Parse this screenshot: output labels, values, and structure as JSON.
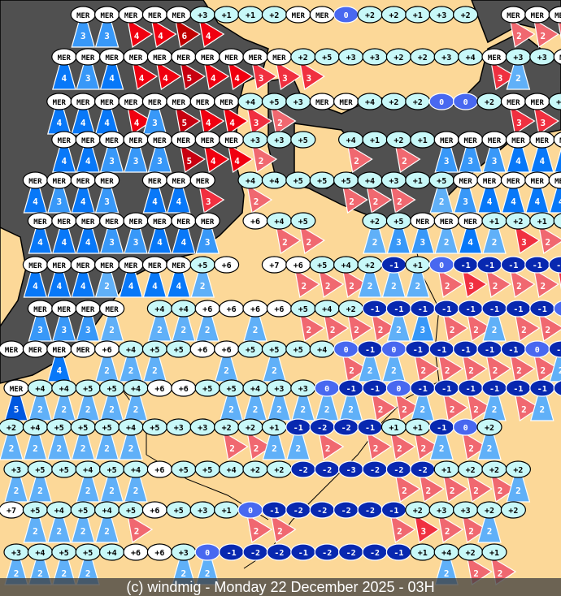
{
  "caption": "(c) windmig - Monday 22 December 2025 - 03H",
  "colors": {
    "land": "#fcd898",
    "sea": "#505050",
    "label_sea": "#ffffff",
    "label_warm": "#c8f8f8",
    "label_zero": "#4868f0",
    "label_cold": "#0828b0",
    "wind_blue": {
      "2": "#60b0f8",
      "3": "#3898f8",
      "4": "#0878f8",
      "5": "#0058e0"
    },
    "wind_red": {
      "2": "#f06870",
      "3": "#f03040",
      "4": "#f00010",
      "5": "#c80010",
      "6": "#c00000"
    }
  },
  "legend_note": "label = temperature or MER (sea); triangle number = wind force; b = blue marker, r = red marker",
  "stations": [
    [
      null,
      null,
      null,
      [
        "MER",
        "3b"
      ],
      [
        "MER",
        "3b"
      ],
      [
        "MER",
        "4r"
      ],
      [
        "MER",
        "4r"
      ],
      [
        "MER",
        "6r"
      ],
      [
        "+3",
        "4r"
      ],
      [
        "+1",
        null
      ],
      [
        "+1",
        null
      ],
      [
        "+2",
        null
      ],
      [
        "MER",
        null
      ],
      [
        "MER",
        null
      ],
      [
        "0",
        null
      ],
      [
        "+2",
        null
      ],
      [
        "+2",
        null
      ],
      [
        "+1",
        null
      ],
      [
        "+3",
        null
      ],
      [
        "+2",
        null
      ],
      null,
      [
        "MER",
        "2r"
      ],
      [
        "MER",
        "2r"
      ],
      [
        "MER",
        "2r"
      ]
    ],
    [
      null,
      null,
      [
        "MER",
        "4b"
      ],
      [
        "MER",
        "3b"
      ],
      [
        "MER",
        "4b"
      ],
      [
        "MER",
        "4r"
      ],
      [
        "MER",
        "4r"
      ],
      [
        "MER",
        "5r"
      ],
      [
        "MER",
        "4r"
      ],
      [
        "MER",
        "4r"
      ],
      [
        "MER",
        "3r"
      ],
      [
        "MER",
        "3r"
      ],
      [
        "+2",
        "3r"
      ],
      [
        "+5",
        null
      ],
      [
        "+3",
        null
      ],
      [
        "+3",
        null
      ],
      [
        "+2",
        null
      ],
      [
        "+2",
        null
      ],
      [
        "+3",
        null
      ],
      [
        "+4",
        null
      ],
      [
        "MER",
        "3r"
      ],
      [
        "+3",
        "2b"
      ],
      [
        "+3",
        null
      ],
      [
        "MER",
        "3r"
      ]
    ],
    [
      null,
      null,
      [
        "MER",
        "4b"
      ],
      [
        "MER",
        "4b"
      ],
      [
        "MER",
        "4b"
      ],
      [
        "MER",
        "4r"
      ],
      [
        "MER",
        "3b"
      ],
      [
        "MER",
        "5r"
      ],
      [
        "MER",
        "4r"
      ],
      [
        "MER",
        "4r"
      ],
      [
        "+4",
        "3r"
      ],
      [
        "+5",
        "2r"
      ],
      [
        "+3",
        null
      ],
      [
        "MER",
        null
      ],
      [
        "MER",
        null
      ],
      [
        "+4",
        null
      ],
      [
        "+2",
        null
      ],
      [
        "+2",
        null
      ],
      [
        "0",
        null
      ],
      [
        "0",
        null
      ],
      [
        "+2",
        null
      ],
      [
        "MER",
        "3r"
      ],
      [
        "MER",
        "3r"
      ],
      [
        "+2",
        null
      ]
    ],
    [
      null,
      null,
      [
        "MER",
        "4b"
      ],
      [
        "MER",
        "4b"
      ],
      [
        "MER",
        "3b"
      ],
      [
        "MER",
        "3b"
      ],
      [
        "MER",
        "3b"
      ],
      [
        "MER",
        "5r"
      ],
      [
        "MER",
        "4r"
      ],
      [
        "MER",
        "4r"
      ],
      [
        "+3",
        "2r"
      ],
      [
        "+3",
        null
      ],
      [
        "+5",
        null
      ],
      null,
      [
        "+4",
        "2r"
      ],
      [
        "+1",
        null
      ],
      [
        "+2",
        "2r"
      ],
      [
        "+1",
        null
      ],
      [
        "MER",
        "3b"
      ],
      [
        "MER",
        "3b"
      ],
      [
        "MER",
        "3b"
      ],
      [
        "MER",
        "4b"
      ],
      [
        "MER",
        "4b"
      ],
      [
        "MER",
        "4b"
      ]
    ],
    [
      null,
      [
        "MER",
        "4b"
      ],
      [
        "MER",
        "3b"
      ],
      [
        "MER",
        "4b"
      ],
      [
        "MER",
        "3b"
      ],
      null,
      [
        "MER",
        "4b"
      ],
      [
        "MER",
        "4b"
      ],
      [
        "MER",
        "3r"
      ],
      null,
      [
        "+4",
        "2r"
      ],
      [
        "+4",
        null
      ],
      [
        "+5",
        null
      ],
      [
        "+5",
        null
      ],
      [
        "+5",
        "2r"
      ],
      [
        "+4",
        "2r"
      ],
      [
        "+3",
        "2r"
      ],
      [
        "+1",
        null
      ],
      [
        "+5",
        "2b"
      ],
      [
        "MER",
        "3b"
      ],
      [
        "MER",
        "4b"
      ],
      [
        "MER",
        "4b"
      ],
      [
        "MER",
        "4b"
      ],
      [
        "MER",
        "4b"
      ]
    ],
    [
      null,
      [
        "MER",
        "4b"
      ],
      [
        "MER",
        "4b"
      ],
      [
        "MER",
        "4b"
      ],
      [
        "MER",
        "3b"
      ],
      [
        "MER",
        "3b"
      ],
      [
        "MER",
        "4b"
      ],
      [
        "MER",
        "4b"
      ],
      [
        "MER",
        "3b"
      ],
      null,
      [
        "+6",
        null
      ],
      [
        "+4",
        "2r"
      ],
      [
        "+5",
        "2r"
      ],
      null,
      null,
      [
        "+2",
        "2b"
      ],
      [
        "+5",
        "3b"
      ],
      [
        "MER",
        "3b"
      ],
      [
        "MER",
        "2b"
      ],
      [
        "MER",
        "4b"
      ],
      [
        "+1",
        "2b"
      ],
      [
        "+2",
        "3r"
      ],
      [
        "+1",
        "2r"
      ],
      [
        "+1",
        "2r"
      ]
    ],
    [
      null,
      [
        "MER",
        "4b"
      ],
      [
        "MER",
        "4b"
      ],
      [
        "MER",
        "4b"
      ],
      [
        "MER",
        "2b"
      ],
      [
        "MER",
        "4b"
      ],
      [
        "MER",
        "4b"
      ],
      [
        "MER",
        "4b"
      ],
      [
        "+5",
        "2b"
      ],
      [
        "+6",
        null
      ],
      null,
      [
        "+7",
        null
      ],
      [
        "+6",
        "2r"
      ],
      [
        "+5",
        "2r"
      ],
      [
        "+4",
        "2r"
      ],
      [
        "+2",
        "2b"
      ],
      [
        "-1",
        "2b"
      ],
      [
        "+1",
        "2b"
      ],
      [
        "0",
        "2r"
      ],
      [
        "-1",
        "3r"
      ],
      [
        "-1",
        "2r"
      ],
      [
        "-1",
        "2r"
      ],
      [
        "-1",
        "2r"
      ],
      [
        "-1",
        "3r"
      ]
    ],
    [
      null,
      [
        "MER",
        "3b"
      ],
      [
        "MER",
        "3b"
      ],
      [
        "MER",
        "3b"
      ],
      [
        "MER",
        "2b"
      ],
      null,
      [
        "+4",
        "2b"
      ],
      [
        "+4",
        "2b"
      ],
      [
        "+6",
        "2b"
      ],
      [
        "+6",
        null
      ],
      [
        "+6",
        "2b"
      ],
      [
        "+6",
        null
      ],
      [
        "+5",
        "2r"
      ],
      [
        "+4",
        "2r"
      ],
      [
        "+2",
        "2r"
      ],
      [
        "-1",
        "2r"
      ],
      [
        "-1",
        "2b"
      ],
      [
        "-1",
        "3b"
      ],
      [
        "-1",
        "2r"
      ],
      [
        "-1",
        "2r"
      ],
      [
        "-1",
        "2b"
      ],
      [
        "-1",
        "2r"
      ],
      [
        "-1",
        "2r"
      ],
      [
        "0",
        "2r"
      ]
    ],
    [
      [
        "MER",
        null
      ],
      [
        "MER",
        null
      ],
      [
        "MER",
        "4b"
      ],
      [
        "MER",
        null
      ],
      [
        "+6",
        "2b"
      ],
      [
        "+4",
        "2b"
      ],
      [
        "+5",
        "2b"
      ],
      [
        "+5",
        null
      ],
      [
        "+6",
        null
      ],
      [
        "+6",
        "2b"
      ],
      [
        "+5",
        null
      ],
      [
        "+5",
        "2b"
      ],
      [
        "+5",
        null
      ],
      [
        "+4",
        null
      ],
      [
        "0",
        "2r"
      ],
      [
        "-1",
        "2b"
      ],
      [
        "0",
        "2b"
      ],
      [
        "-1",
        "2r"
      ],
      [
        "-1",
        "2r"
      ],
      [
        "-1",
        "2r"
      ],
      [
        "-1",
        "2r"
      ],
      [
        "-1",
        "2r"
      ],
      [
        "0",
        "2r"
      ],
      [
        "-1",
        "2b"
      ]
    ],
    [
      [
        "MER",
        "5b"
      ],
      [
        "+4",
        "2b"
      ],
      [
        "+4",
        "2b"
      ],
      [
        "+5",
        "2b"
      ],
      [
        "+5",
        "2b"
      ],
      [
        "+4",
        "2b"
      ],
      [
        "+6",
        null
      ],
      [
        "+6",
        null
      ],
      [
        "+5",
        null
      ],
      [
        "+5",
        "2b"
      ],
      [
        "+4",
        "2b"
      ],
      [
        "+3",
        "2b"
      ],
      [
        "+3",
        "2b"
      ],
      [
        "0",
        "2b"
      ],
      [
        "-1",
        "2b"
      ],
      [
        "-1",
        "2r"
      ],
      [
        "0",
        "2r"
      ],
      [
        "-1",
        "2b"
      ],
      [
        "-1",
        "2r"
      ],
      [
        "-1",
        "2r"
      ],
      [
        "-1",
        "2b"
      ],
      [
        "-1",
        "2r"
      ],
      [
        "-1",
        "2b"
      ],
      [
        "-1",
        "2r"
      ]
    ],
    [
      [
        "+2",
        "2b"
      ],
      [
        "+4",
        "2b"
      ],
      [
        "+5",
        "2b"
      ],
      [
        "+5",
        "2b"
      ],
      [
        "+5",
        "2b"
      ],
      [
        "+4",
        "2b"
      ],
      [
        "+5",
        null
      ],
      [
        "+3",
        null
      ],
      [
        "+3",
        null
      ],
      [
        "+2",
        "2r"
      ],
      [
        "+2",
        "2r"
      ],
      [
        "+1",
        "2b"
      ],
      [
        "-1",
        "2b"
      ],
      [
        "-2",
        "2r"
      ],
      [
        "-2",
        null
      ],
      [
        "-1",
        "2r"
      ],
      [
        "+1",
        "2r"
      ],
      [
        "+1",
        "2r"
      ],
      [
        "-1",
        "2b"
      ],
      [
        "0",
        "2r"
      ],
      [
        "+2",
        "2b"
      ],
      null,
      null,
      null
    ],
    [
      [
        "+3",
        "2b"
      ],
      [
        "+5",
        "2b"
      ],
      [
        "+5",
        null
      ],
      [
        "+4",
        "2b"
      ],
      [
        "+5",
        "2b"
      ],
      [
        "+4",
        "2b"
      ],
      [
        "+6",
        null
      ],
      [
        "+5",
        null
      ],
      [
        "+5",
        null
      ],
      [
        "+4",
        null
      ],
      [
        "+2",
        null
      ],
      [
        "+2",
        null
      ],
      [
        "-2",
        null
      ],
      [
        "-2",
        null
      ],
      [
        "-3",
        null
      ],
      [
        "-2",
        null
      ],
      [
        "-2",
        "2r"
      ],
      [
        "-2",
        "2r"
      ],
      [
        "+1",
        "2r"
      ],
      [
        "+2",
        "2r"
      ],
      [
        "+2",
        "2r"
      ],
      [
        "+2",
        "2b"
      ],
      null,
      null
    ],
    [
      [
        "+7",
        null
      ],
      [
        "+5",
        "2b"
      ],
      [
        "+4",
        "2b"
      ],
      [
        "+5",
        "2b"
      ],
      [
        "+4",
        "2b"
      ],
      [
        "+5",
        "2r"
      ],
      [
        "+6",
        null
      ],
      [
        "+5",
        null
      ],
      [
        "+3",
        null
      ],
      [
        "+1",
        null
      ],
      [
        "0",
        "2r"
      ],
      [
        "-1",
        "2r"
      ],
      [
        "-2",
        null
      ],
      [
        "-2",
        null
      ],
      [
        "-2",
        null
      ],
      [
        "-2",
        null
      ],
      [
        "-1",
        "2r"
      ],
      [
        "+2",
        "3r"
      ],
      [
        "+3",
        "2r"
      ],
      [
        "+3",
        "2r"
      ],
      [
        "+2",
        "2b"
      ],
      [
        "+2",
        null
      ],
      null,
      null
    ],
    [
      [
        "+3",
        "2b"
      ],
      [
        "+4",
        "2b"
      ],
      [
        "+5",
        "2b"
      ],
      [
        "+5",
        "2b"
      ],
      [
        "+4",
        null
      ],
      [
        "+6",
        null
      ],
      [
        "+6",
        null
      ],
      [
        "+3",
        "2b"
      ],
      [
        "0",
        "2b"
      ],
      [
        "-1",
        null
      ],
      [
        "-2",
        null
      ],
      [
        "-2",
        null
      ],
      [
        "-1",
        null
      ],
      [
        "-2",
        null
      ],
      [
        "-2",
        null
      ],
      [
        "-2",
        null
      ],
      [
        "-1",
        null
      ],
      [
        "+1",
        null
      ],
      [
        "+4",
        "2b"
      ],
      [
        "+2",
        "2r"
      ],
      [
        "+1",
        "2r"
      ],
      null,
      null,
      null
    ]
  ]
}
